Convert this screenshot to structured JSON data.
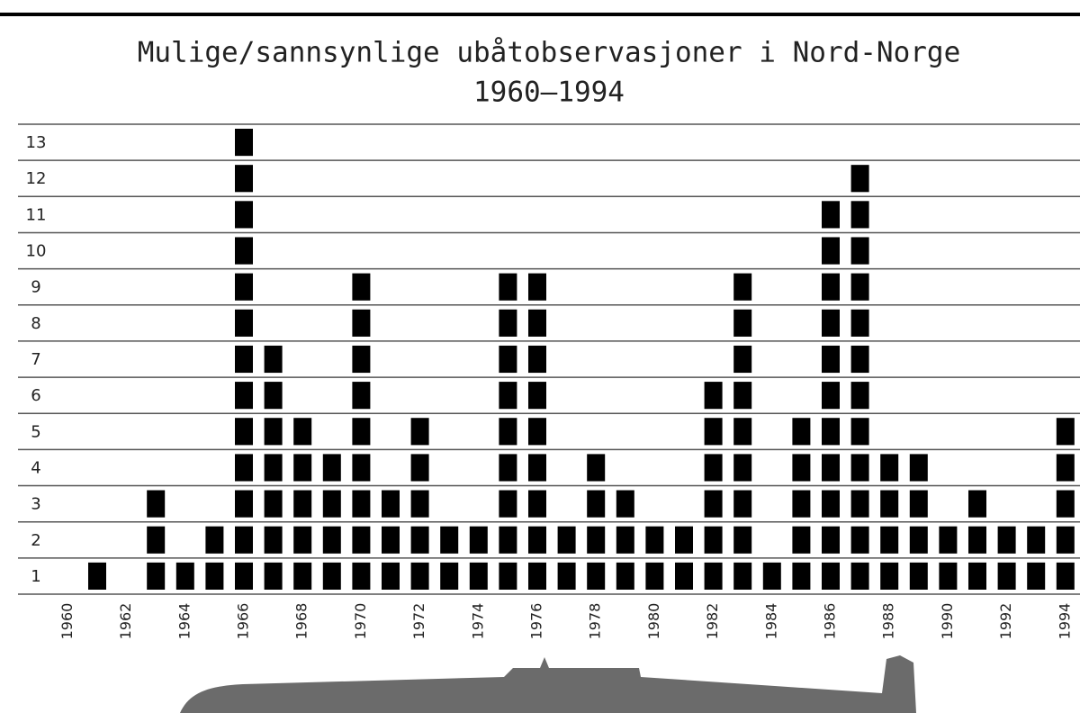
{
  "chart_data": {
    "type": "unit",
    "title": "Mulige/sannsynlige ubåtobservasjoner i Nord-Norge",
    "subtitle": "1960–1994",
    "categories": [
      "1960",
      null,
      "1962",
      null,
      "1964",
      null,
      "1966",
      null,
      "1968",
      null,
      "1970",
      null,
      "1972",
      null,
      "1974",
      null,
      "1976",
      null,
      "1978",
      null,
      "1980",
      null,
      "1982",
      null,
      "1984",
      null,
      "1986",
      null,
      "1988",
      null,
      "1990",
      null,
      "1992",
      null,
      "1994"
    ],
    "values": [
      0,
      1,
      0,
      3,
      1,
      2,
      13,
      7,
      5,
      4,
      9,
      3,
      5,
      2,
      2,
      9,
      9,
      2,
      4,
      3,
      2,
      2,
      6,
      9,
      1,
      5,
      11,
      12,
      4,
      4,
      2,
      3,
      2,
      2,
      5
    ],
    "color": "#000000",
    "ylim": [
      0,
      13
    ],
    "yticks": [
      1,
      2,
      3,
      4,
      5,
      6,
      7,
      8,
      9,
      10,
      11,
      12,
      13
    ],
    "grid": true
  }
}
